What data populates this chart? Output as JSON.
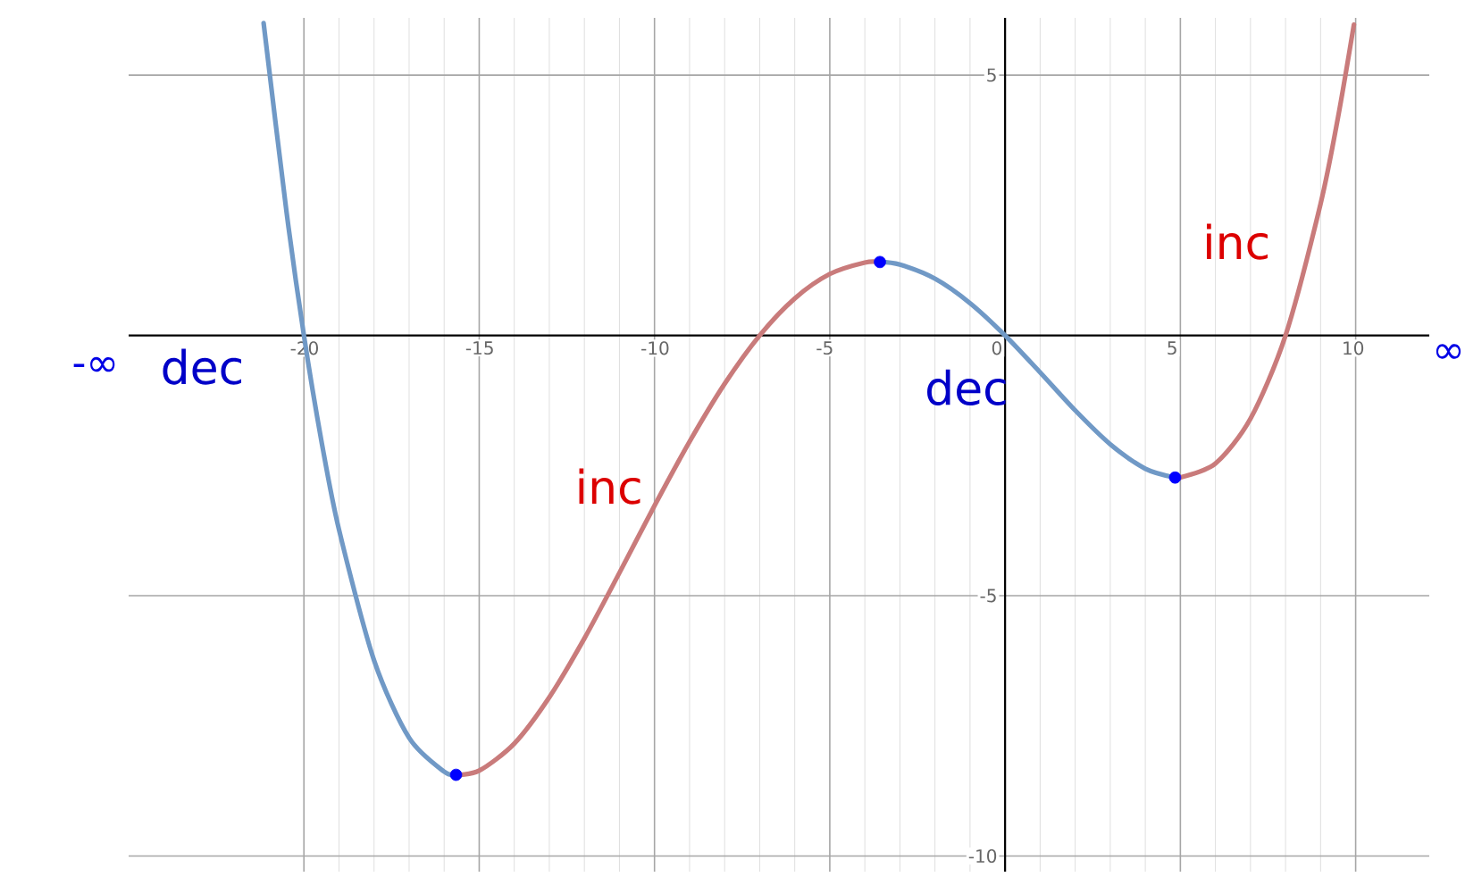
{
  "chart_data": {
    "type": "line",
    "series": [
      {
        "color": "#7099c6",
        "x": [
          -21.15,
          -20.5,
          -20,
          -19.5,
          -19,
          -18,
          -17,
          -16,
          -15.66
        ],
        "values": [
          6.0,
          2.39,
          0,
          -2.03,
          -3.73,
          -6.24,
          -7.73,
          -8.38,
          -8.44
        ]
      },
      {
        "color": "#c97b7b",
        "x": [
          -15.66,
          -15,
          -14,
          -13,
          -12,
          -11,
          -10,
          -9,
          -8,
          -7,
          -6,
          -5,
          -4,
          -3.57
        ],
        "values": [
          -8.44,
          -8.36,
          -7.84,
          -6.95,
          -5.82,
          -4.56,
          -3.27,
          -2.04,
          -0.93,
          0,
          0.71,
          1.18,
          1.4,
          1.41
        ]
      },
      {
        "color": "#7099c6",
        "x": [
          -3.57,
          -3,
          -2,
          -1,
          0,
          1,
          2,
          3,
          4,
          4.85
        ],
        "values": [
          1.41,
          1.36,
          1.09,
          0.62,
          0,
          -0.71,
          -1.44,
          -2.09,
          -2.56,
          -2.73
        ]
      },
      {
        "color": "#c97b7b",
        "x": [
          4.85,
          5,
          6,
          7,
          8,
          9,
          9.5,
          9.95
        ],
        "values": [
          -2.73,
          -2.73,
          -2.46,
          -1.6,
          0,
          2.53,
          4.2,
          5.97
        ]
      },
      {
        "type": "scatter",
        "color": "#0000ff",
        "x": [
          -15.66,
          -3.57,
          4.85
        ],
        "values": [
          -8.44,
          1.41,
          -2.73
        ]
      }
    ],
    "xlim": [
      -25,
      12.1
    ],
    "ylim": [
      -10.3,
      6.1
    ],
    "xticks": [
      -20,
      -15,
      -10,
      -5,
      0,
      5,
      10
    ],
    "yticks": [
      -10,
      -5,
      5
    ],
    "grid": true,
    "annotations": [
      "-∞",
      "dec",
      "inc",
      "dec",
      "inc",
      "∞"
    ]
  }
}
